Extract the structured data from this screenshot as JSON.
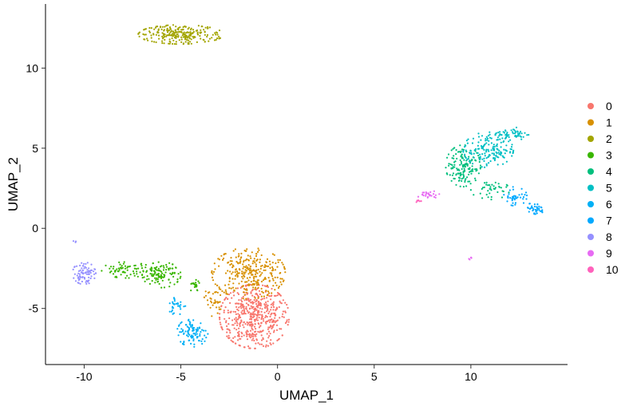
{
  "chart_data": {
    "type": "scatter",
    "xlabel": "UMAP_1",
    "ylabel": "UMAP_2",
    "xlim": [
      -12.0,
      15.0
    ],
    "ylim": [
      -8.5,
      14.0
    ],
    "x_ticks": [
      -10,
      -5,
      0,
      5,
      10
    ],
    "y_ticks": [
      -5,
      0,
      5,
      10
    ],
    "x_tick_labels": [
      "-10",
      "-5",
      "0",
      "5",
      "10"
    ],
    "y_tick_labels": [
      "-5",
      "0",
      "5",
      "10"
    ],
    "grid": false,
    "legend_position": "right",
    "series": [
      {
        "name": "0",
        "color": "#F8766D",
        "blobs": [
          {
            "cx": -1.2,
            "cy": -5.5,
            "rx": 1.8,
            "ry": 2.0,
            "n": 520
          }
        ]
      },
      {
        "name": "1",
        "color": "#D89000",
        "blobs": [
          {
            "cx": -1.5,
            "cy": -2.8,
            "rx": 1.9,
            "ry": 1.6,
            "n": 300
          },
          {
            "cx": -3.3,
            "cy": -4.5,
            "rx": 0.5,
            "ry": 1.0,
            "n": 40
          }
        ]
      },
      {
        "name": "2",
        "color": "#A3A500",
        "blobs": [
          {
            "cx": -5.0,
            "cy": 12.1,
            "rx": 2.2,
            "ry": 0.6,
            "n": 250
          }
        ]
      },
      {
        "name": "3",
        "color": "#39B600",
        "blobs": [
          {
            "cx": -7.8,
            "cy": -2.6,
            "rx": 1.3,
            "ry": 0.5,
            "n": 70
          },
          {
            "cx": -6.0,
            "cy": -2.9,
            "rx": 1.0,
            "ry": 0.8,
            "n": 110
          },
          {
            "cx": -4.3,
            "cy": -3.6,
            "rx": 0.3,
            "ry": 0.4,
            "n": 20
          }
        ]
      },
      {
        "name": "4",
        "color": "#00BF7D",
        "blobs": [
          {
            "cx": 9.6,
            "cy": 3.9,
            "rx": 0.9,
            "ry": 1.3,
            "n": 150
          },
          {
            "cx": 11.0,
            "cy": 2.4,
            "rx": 1.0,
            "ry": 0.6,
            "n": 40
          }
        ]
      },
      {
        "name": "5",
        "color": "#00BFC4",
        "blobs": [
          {
            "cx": 10.9,
            "cy": 4.9,
            "rx": 1.3,
            "ry": 1.1,
            "n": 170
          },
          {
            "cx": 12.2,
            "cy": 5.9,
            "rx": 0.8,
            "ry": 0.4,
            "n": 50
          }
        ]
      },
      {
        "name": "6",
        "color": "#00B0F6",
        "blobs": [
          {
            "cx": -4.4,
            "cy": -6.5,
            "rx": 0.8,
            "ry": 0.9,
            "n": 100
          },
          {
            "cx": -5.2,
            "cy": -4.8,
            "rx": 0.5,
            "ry": 0.6,
            "n": 30
          }
        ]
      },
      {
        "name": "7",
        "color": "#00A9FF",
        "blobs": [
          {
            "cx": 12.3,
            "cy": 2.0,
            "rx": 0.6,
            "ry": 0.6,
            "n": 40
          },
          {
            "cx": 13.3,
            "cy": 1.2,
            "rx": 0.5,
            "ry": 0.4,
            "n": 40
          }
        ]
      },
      {
        "name": "8",
        "color": "#9590FF",
        "blobs": [
          {
            "cx": -10.0,
            "cy": -2.8,
            "rx": 0.6,
            "ry": 0.7,
            "n": 80
          },
          {
            "cx": -10.5,
            "cy": -0.8,
            "rx": 0.1,
            "ry": 0.1,
            "n": 3
          }
        ]
      },
      {
        "name": "9",
        "color": "#E76BF3",
        "blobs": [
          {
            "cx": 7.8,
            "cy": 2.1,
            "rx": 0.6,
            "ry": 0.25,
            "n": 25
          },
          {
            "cx": 10.0,
            "cy": -1.9,
            "rx": 0.1,
            "ry": 0.1,
            "n": 5
          }
        ]
      },
      {
        "name": "10",
        "color": "#FF62BC",
        "blobs": [
          {
            "cx": 7.3,
            "cy": 1.7,
            "rx": 0.15,
            "ry": 0.1,
            "n": 6
          }
        ]
      }
    ]
  }
}
